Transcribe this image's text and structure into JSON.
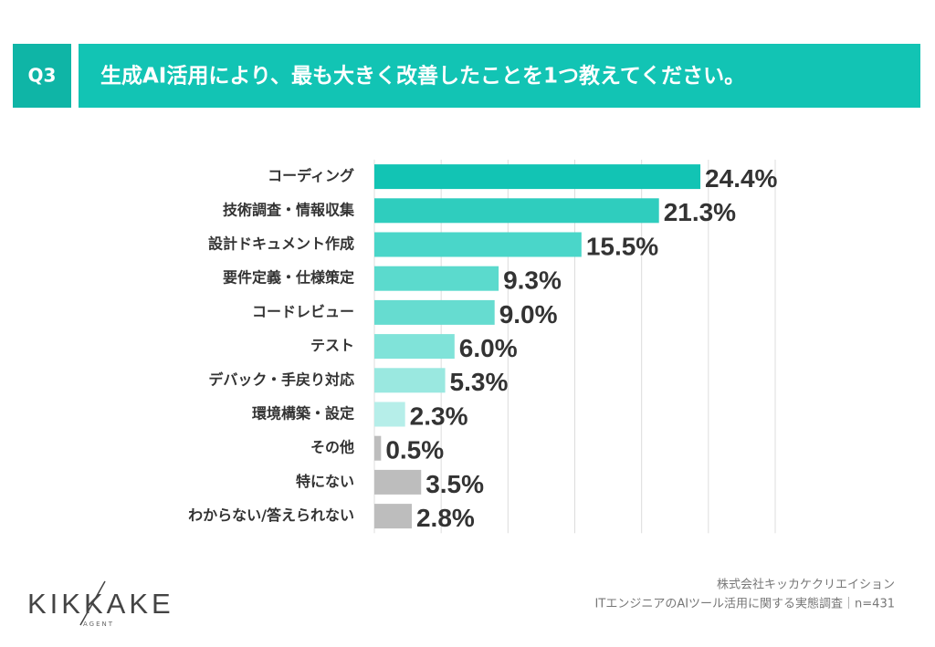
{
  "header": {
    "tag": "Q3",
    "title": "生成AI活用により、最も大きく改善したことを1つ教えてください。"
  },
  "chart_data": {
    "type": "hbar",
    "categories": [
      "コーディング",
      "技術調査・情報収集",
      "設計ドキュメント作成",
      "要件定義・仕様策定",
      "コードレビュー",
      "テスト",
      "デバック・手戻り対応",
      "環境構築・設定",
      "その他",
      "特にない",
      "わからない/答えられない"
    ],
    "values": [
      24.4,
      21.3,
      15.5,
      9.3,
      9.0,
      6.0,
      5.3,
      2.3,
      0.5,
      3.5,
      2.8
    ],
    "value_labels": [
      "24.4%",
      "21.3%",
      "15.5%",
      "9.3%",
      "9.0%",
      "6.0%",
      "5.3%",
      "2.3%",
      "0.5%",
      "3.5%",
      "2.8%"
    ],
    "colors": [
      "#12c4b4",
      "#2fcdbe",
      "#4ad6c9",
      "#5bdacd",
      "#66dcd0",
      "#80e3d9",
      "#9ae8e0",
      "#b6eee9",
      "#bdbdbd",
      "#bdbdbd",
      "#bdbdbd"
    ],
    "xlim": [
      0,
      30
    ],
    "xticks": [
      0,
      5,
      10,
      15,
      20,
      25,
      30
    ],
    "grid": true
  },
  "footer": {
    "logo": "KIKKAKE",
    "logo_sub": "AGENT",
    "source_1": "株式会社キッカケクリエイション",
    "source_2": "ITエンジニアのAIツール活用に関する実態調査｜n=431"
  }
}
